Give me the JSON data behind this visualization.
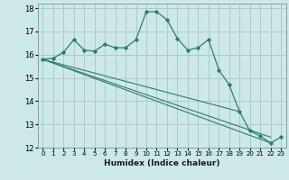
{
  "xlabel": "Humidex (Indice chaleur)",
  "background_color": "#cce8e8",
  "grid_color": "#aacccc",
  "line_color": "#2e7d6e",
  "xlim": [
    -0.5,
    23.5
  ],
  "ylim": [
    12,
    18.2
  ],
  "xticks": [
    0,
    1,
    2,
    3,
    4,
    5,
    6,
    7,
    8,
    9,
    10,
    11,
    12,
    13,
    14,
    15,
    16,
    17,
    18,
    19,
    20,
    21,
    22,
    23
  ],
  "yticks": [
    12,
    13,
    14,
    15,
    16,
    17,
    18
  ],
  "line1_x": [
    0,
    1,
    2,
    3,
    4,
    5,
    6,
    7,
    8,
    9,
    10,
    11,
    12,
    13,
    14,
    15,
    16,
    17,
    18,
    19,
    20,
    21,
    22,
    23
  ],
  "line1_y": [
    15.8,
    15.85,
    16.1,
    16.65,
    16.2,
    16.15,
    16.45,
    16.3,
    16.3,
    16.65,
    17.85,
    17.85,
    17.5,
    16.7,
    16.2,
    16.3,
    16.65,
    15.35,
    14.7,
    13.55,
    12.72,
    12.5,
    12.2,
    12.45
  ],
  "line2_x": [
    0,
    22
  ],
  "line2_y": [
    15.8,
    12.2
  ],
  "line3_x": [
    0,
    22
  ],
  "line3_y": [
    15.8,
    12.45
  ],
  "line4_x": [
    0,
    19
  ],
  "line4_y": [
    15.8,
    13.55
  ]
}
